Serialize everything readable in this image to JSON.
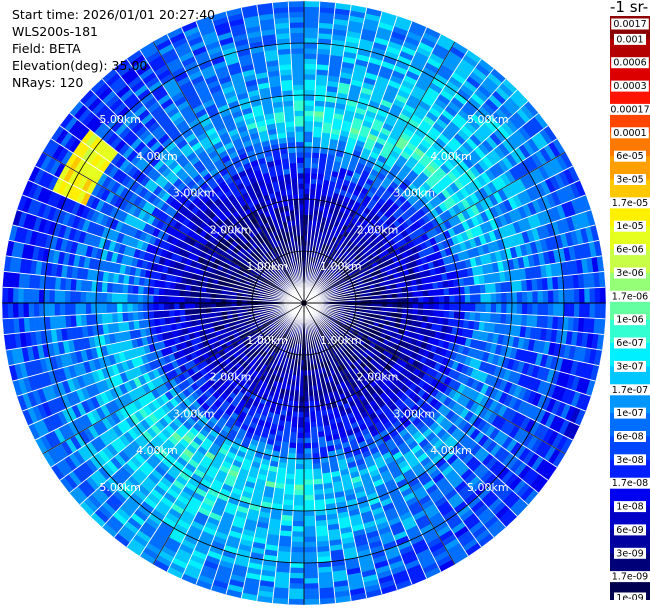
{
  "header": {
    "start_time": "Start time: 2026/01/01 20:27:40",
    "instrument": "WLS200s-181",
    "field": "Field: BETA",
    "elevation": "Elevation(deg): 35.00",
    "nrays": "NRays: 120"
  },
  "colorbar": {
    "title": "-1 sr-",
    "labels": [
      "0.0017",
      "0.001",
      "0.0006",
      "0.0003",
      "0.00017",
      "0.0001",
      "6e-05",
      "3e-05",
      "1.7e-05",
      "1e-05",
      "6e-06",
      "3e-06",
      "1.7e-06",
      "1e-06",
      "6e-07",
      "3e-07",
      "1.7e-07",
      "1e-07",
      "6e-08",
      "3e-08",
      "1.7e-08",
      "1e-08",
      "6e-09",
      "3e-09",
      "1.7e-09",
      "1e-09"
    ],
    "colors": [
      "#8b0000",
      "#b40000",
      "#dc0000",
      "#ff1400",
      "#ff4600",
      "#ff7800",
      "#ffa000",
      "#ffc800",
      "#fff000",
      "#e6ff1e",
      "#c8ff46",
      "#96ff78",
      "#64ffa0",
      "#32ffd2",
      "#00f0ff",
      "#00c8ff",
      "#0096ff",
      "#006eff",
      "#0046ff",
      "#001eff",
      "#0000f0",
      "#0000c8",
      "#0000a0",
      "#000078",
      "#000050"
    ]
  },
  "chart_data": {
    "type": "heatmap",
    "projection": "polar (PPI scan)",
    "field": "BETA",
    "elevation_deg": 35.0,
    "n_rays": 120,
    "range_rings_km": [
      1,
      2,
      3,
      4,
      5
    ],
    "ring_labels": [
      "1.00km",
      "2.00km",
      "3.00km",
      "4.00km",
      "5.00km"
    ],
    "max_range_km": 5.8,
    "range_gate_km": 0.1,
    "value_scale": "log10",
    "value_range": [
      1e-09,
      0.0017
    ],
    "spoke_angles_deg": [
      0,
      30,
      60,
      90,
      120,
      150,
      180,
      210,
      240,
      270,
      300,
      330
    ],
    "radial_profile": [
      {
        "range_km": 0.0,
        "log10_beta": -8.9
      },
      {
        "range_km": 1.0,
        "log10_beta": -8.7
      },
      {
        "range_km": 2.0,
        "log10_beta": -8.2
      },
      {
        "range_km": 2.8,
        "log10_beta": -7.6
      },
      {
        "range_km": 3.5,
        "log10_beta": -6.6
      },
      {
        "range_km": 4.2,
        "log10_beta": -6.9
      },
      {
        "range_km": 5.0,
        "log10_beta": -7.1
      },
      {
        "range_km": 5.8,
        "log10_beta": -7.3
      }
    ],
    "enhanced_region": {
      "azimuth_deg": 300,
      "range_km": [
        4.6,
        5.3
      ],
      "log10_beta": -5.0
    }
  }
}
